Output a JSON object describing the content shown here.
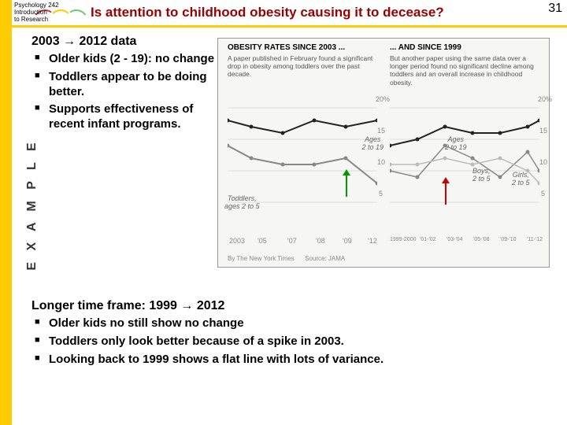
{
  "header": {
    "course": "Psychology 242\nIntroduction\nto Research",
    "title": "Is attention to childhood obesity causing it to decease?",
    "page_number": "31"
  },
  "side_label": "E X A M P L E",
  "section_a": {
    "heading_pre": "2003",
    "heading_post": "2012 data",
    "bullets": [
      "Older kids (2 - 19): no change",
      "Toddlers appear to be doing better.",
      "Supports effectiveness of recent infant programs."
    ]
  },
  "section_b": {
    "heading_pre": "Longer time frame: 1999",
    "heading_post": "2012",
    "bullets": [
      "Older kids no still show no change",
      "Toddlers only look better because of a spike in 2003.",
      "Looking back to 1999 shows a flat line with lots of variance."
    ]
  },
  "chart": {
    "left_title": "OBESITY RATES SINCE 2003 ...",
    "right_title": "... AND SINCE 1999",
    "left_sub": "A paper published in February found a significant drop in obesity among toddlers over the past decade.",
    "right_sub": "But another paper using the same data over a longer period found no significant decline among toddlers and an overall increase in childhood obesity.",
    "y_ticks": [
      "20%",
      "15",
      "10",
      "5"
    ],
    "left_x": [
      "2003",
      "'05",
      "'07",
      "'08",
      "'09",
      "'12"
    ],
    "right_x": [
      "1999-2000",
      "'01-'02",
      "'03-'04",
      "'05-'08",
      "'09-'10",
      "'11-'12"
    ],
    "left_labels": {
      "top": "Ages\n2 to 19",
      "bottom": "Toddlers,\nages 2 to 5"
    },
    "right_labels": {
      "top": "Ages\n2 to 19",
      "g1": "Boys,\n2 to 5",
      "g2": "Girls,\n2 to 5"
    },
    "credit_left": "By The New York Times",
    "credit_right": "Source: JAMA",
    "left_lines": {
      "all": [
        [
          0,
          18
        ],
        [
          30,
          17
        ],
        [
          70,
          16
        ],
        [
          110,
          18
        ],
        [
          150,
          17
        ],
        [
          190,
          18
        ]
      ],
      "tod": [
        [
          0,
          14
        ],
        [
          30,
          12
        ],
        [
          70,
          11
        ],
        [
          110,
          11
        ],
        [
          150,
          12
        ],
        [
          190,
          8
        ]
      ]
    },
    "right_lines": {
      "all": [
        [
          0,
          14
        ],
        [
          35,
          15
        ],
        [
          70,
          17
        ],
        [
          105,
          16
        ],
        [
          140,
          16
        ],
        [
          175,
          17
        ],
        [
          190,
          18
        ]
      ],
      "boys": [
        [
          0,
          10
        ],
        [
          35,
          9
        ],
        [
          70,
          14
        ],
        [
          105,
          12
        ],
        [
          140,
          9
        ],
        [
          175,
          13
        ],
        [
          190,
          10
        ]
      ],
      "girls": [
        [
          0,
          11
        ],
        [
          35,
          11
        ],
        [
          70,
          12
        ],
        [
          105,
          11
        ],
        [
          140,
          12
        ],
        [
          175,
          10
        ],
        [
          190,
          8
        ]
      ]
    },
    "arrows": {
      "green": "#009900",
      "red": "#cc0000"
    },
    "colors": {
      "line_dark": "#222222",
      "line_mid": "#888888",
      "line_light": "#bbbbbb",
      "bg": "#f6f6f4"
    }
  }
}
